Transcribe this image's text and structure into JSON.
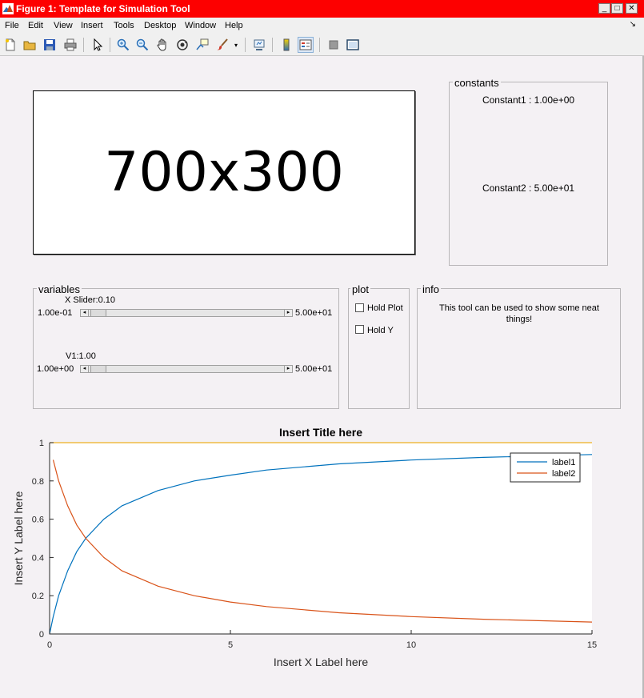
{
  "window": {
    "title": "Figure 1: Template for Simulation Tool",
    "minimize_glyph": "_",
    "maximize_glyph": "□",
    "close_glyph": "✕"
  },
  "menu": [
    "File",
    "Edit",
    "Insert",
    "Tools",
    "Desktop",
    "Window",
    "Help"
  ],
  "menu_dock_glyph": "↘",
  "toolbar": {
    "icons": [
      "new-figure-icon",
      "open-icon",
      "save-icon",
      "print-icon",
      "edit-plot-arrow-icon",
      "zoom-in-icon",
      "zoom-out-icon",
      "pan-hand-icon",
      "rotate-3d-icon",
      "data-cursor-icon",
      "brush-icon",
      "brush-dropdown-icon",
      "link-plot-icon",
      "insert-colorbar-icon",
      "insert-legend-icon",
      "hide-plot-tools-icon",
      "show-plot-tools-icon"
    ]
  },
  "placeholder": {
    "text": "700x300"
  },
  "constants": {
    "title": "constants",
    "constant1": "Constant1 : 1.00e+00",
    "constant2": "Constant2 : 5.00e+01"
  },
  "variables": {
    "title": "variables",
    "slider1": {
      "label": "X Slider:0.10",
      "min": "1.00e-01",
      "max": "5.00e+01",
      "value": 0.1,
      "min_value": 0.1,
      "max_value": 50
    },
    "slider2": {
      "label": "V1:1.00",
      "min": "1.00e+00",
      "max": "5.00e+01",
      "value": 1.0,
      "min_value": 1.0,
      "max_value": 50
    },
    "arrow_left": "◂",
    "arrow_right": "▸"
  },
  "plot_panel": {
    "title": "plot",
    "hold_plot": "Hold Plot",
    "hold_y": "Hold Y",
    "hold_plot_checked": false,
    "hold_y_checked": false
  },
  "info": {
    "title": "info",
    "text": "This tool can be used to show some neat things!"
  },
  "chart_data": {
    "type": "line",
    "title": "Insert Title here",
    "xlabel": "Insert X Label here",
    "ylabel": "Insert Y Label here",
    "xlim": [
      0,
      15
    ],
    "ylim": [
      0,
      1
    ],
    "xticks": [
      0,
      5,
      10,
      15
    ],
    "yticks": [
      0,
      0.2,
      0.4,
      0.6,
      0.8,
      1
    ],
    "grid": false,
    "legend": "top-right",
    "series": [
      {
        "name": "label1",
        "color": "#0072bd",
        "x": [
          0,
          0.1,
          0.25,
          0.5,
          0.75,
          1,
          1.5,
          2,
          3,
          4,
          5,
          6,
          8,
          10,
          12,
          15
        ],
        "y": [
          0,
          0.09,
          0.2,
          0.33,
          0.43,
          0.5,
          0.6,
          0.67,
          0.75,
          0.8,
          0.83,
          0.857,
          0.889,
          0.909,
          0.923,
          0.938
        ]
      },
      {
        "name": "label2",
        "color": "#d95319",
        "x": [
          0.1,
          0.25,
          0.5,
          0.75,
          1,
          1.5,
          2,
          3,
          4,
          5,
          6,
          8,
          10,
          12,
          15
        ],
        "y": [
          0.91,
          0.8,
          0.67,
          0.57,
          0.5,
          0.4,
          0.33,
          0.25,
          0.2,
          0.167,
          0.143,
          0.111,
          0.091,
          0.077,
          0.0625
        ]
      },
      {
        "color": "#edb120",
        "x": [
          0,
          15
        ],
        "y": [
          1,
          1
        ]
      }
    ]
  }
}
